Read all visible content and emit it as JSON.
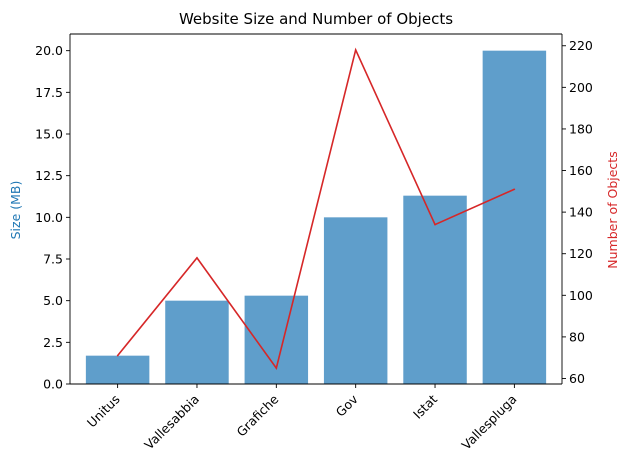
{
  "chart_data": {
    "type": "bar",
    "title": "Website Size and Number of Objects",
    "categories": [
      "Unitus",
      "Vallesabbia",
      "Grafiche",
      "Gov",
      "Istat",
      "Vallespluga"
    ],
    "series": [
      {
        "name": "Size (MB)",
        "type": "bar",
        "axis": "left",
        "values": [
          1.7,
          5.0,
          5.3,
          10.0,
          11.3,
          20.0
        ],
        "color": "#5f9ecb"
      },
      {
        "name": "Number of Objects",
        "type": "line",
        "axis": "right",
        "values": [
          71,
          118,
          65,
          218,
          134,
          151
        ],
        "color": "#d62728"
      }
    ],
    "ylabel": "Size (MB)",
    "ylabel_color": "#1f77b4",
    "y2label": "Number of Objects",
    "y2label_color": "#d62728",
    "ylim": [
      0,
      21.0
    ],
    "y2lim": [
      57.35,
      225.65
    ],
    "yticks": [
      "0.0",
      "2.5",
      "5.0",
      "7.5",
      "10.0",
      "12.5",
      "15.0",
      "17.5",
      "20.0"
    ],
    "y2ticks": [
      "60",
      "80",
      "100",
      "120",
      "140",
      "160",
      "180",
      "200",
      "220"
    ],
    "grid": false,
    "legend": "none"
  }
}
